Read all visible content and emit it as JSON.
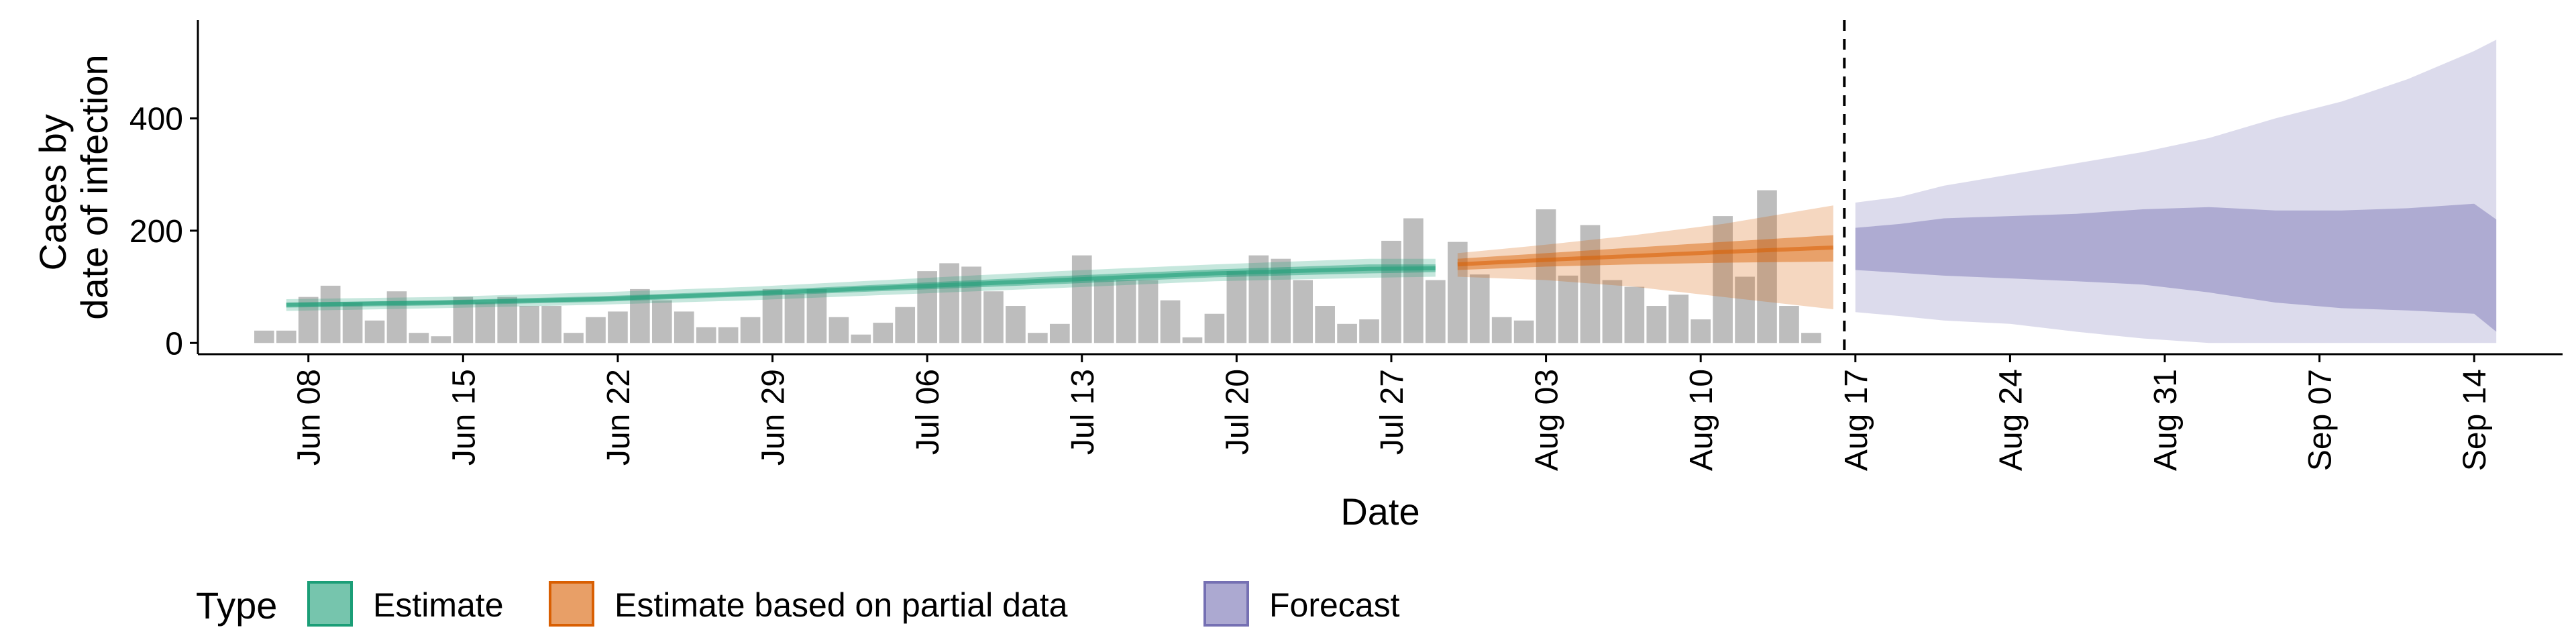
{
  "chart_data": {
    "type": "bar",
    "xlabel": "Date",
    "ylabel_lines": [
      "Cases by",
      "date of infection"
    ],
    "ylim": [
      -20,
      575
    ],
    "yticks": [
      0,
      200,
      400
    ],
    "x_range": [
      "2020-06-03",
      "2020-09-18"
    ],
    "x_ticks": [
      {
        "date": "2020-06-08",
        "label": "Jun 08"
      },
      {
        "date": "2020-06-15",
        "label": "Jun 15"
      },
      {
        "date": "2020-06-22",
        "label": "Jun 22"
      },
      {
        "date": "2020-06-29",
        "label": "Jun 29"
      },
      {
        "date": "2020-07-06",
        "label": "Jul 06"
      },
      {
        "date": "2020-07-13",
        "label": "Jul 13"
      },
      {
        "date": "2020-07-20",
        "label": "Jul 20"
      },
      {
        "date": "2020-07-27",
        "label": "Jul 27"
      },
      {
        "date": "2020-08-03",
        "label": "Aug 03"
      },
      {
        "date": "2020-08-10",
        "label": "Aug 10"
      },
      {
        "date": "2020-08-17",
        "label": "Aug 17"
      },
      {
        "date": "2020-08-24",
        "label": "Aug 24"
      },
      {
        "date": "2020-08-31",
        "label": "Aug 31"
      },
      {
        "date": "2020-09-07",
        "label": "Sep 07"
      },
      {
        "date": "2020-09-14",
        "label": "Sep 14"
      }
    ],
    "bars": {
      "color": "#bdbdbd",
      "start_date": "2020-06-06",
      "values": [
        22,
        22,
        82,
        102,
        72,
        40,
        92,
        18,
        12,
        82,
        72,
        82,
        66,
        66,
        18,
        46,
        56,
        96,
        76,
        56,
        28,
        28,
        46,
        96,
        88,
        96,
        46,
        15,
        36,
        64,
        128,
        142,
        136,
        92,
        66,
        18,
        34,
        156,
        112,
        112,
        112,
        76,
        10,
        52,
        128,
        156,
        150,
        112,
        66,
        34,
        42,
        182,
        222,
        112,
        180,
        122,
        46,
        40,
        238,
        120,
        210,
        112,
        100,
        66,
        86,
        42,
        226,
        118,
        272,
        66,
        18
      ]
    },
    "estimate_date": "2020-08-16",
    "legend": {
      "title": "Type",
      "position": "bottom",
      "items": [
        {
          "label": "Estimate",
          "color": "#1b9e77"
        },
        {
          "label": "Estimate based on partial data",
          "color": "#d95f02"
        },
        {
          "label": "Forecast",
          "color": "#7570b3"
        }
      ]
    },
    "series": [
      {
        "name": "Estimate",
        "color": "#1b9e77",
        "dates": [
          "2020-06-07",
          "2020-06-14",
          "2020-06-21",
          "2020-06-28",
          "2020-07-05",
          "2020-07-12",
          "2020-07-19",
          "2020-07-26",
          "2020-07-29"
        ],
        "upper90": [
          78,
          82,
          90,
          100,
          114,
          128,
          140,
          150,
          150
        ],
        "upper50": [
          72,
          76,
          83,
          93,
          106,
          119,
          131,
          140,
          140
        ],
        "median": [
          68,
          72,
          78,
          88,
          100,
          112,
          124,
          132,
          133
        ],
        "lower50": [
          63,
          67,
          73,
          83,
          94,
          105,
          117,
          124,
          126
        ],
        "lower90": [
          57,
          62,
          68,
          76,
          87,
          98,
          110,
          116,
          118
        ]
      },
      {
        "name": "Estimate based on partial data",
        "color": "#d95f02",
        "dates": [
          "2020-07-30",
          "2020-08-03",
          "2020-08-07",
          "2020-08-11",
          "2020-08-16"
        ],
        "upper90": [
          160,
          175,
          192,
          212,
          245
        ],
        "upper50": [
          150,
          160,
          170,
          180,
          192
        ],
        "median": [
          140,
          148,
          155,
          162,
          170
        ],
        "lower50": [
          130,
          136,
          140,
          143,
          145
        ],
        "lower90": [
          118,
          112,
          100,
          82,
          60
        ]
      },
      {
        "name": "Forecast",
        "color": "#7570b3",
        "dates": [
          "2020-08-17",
          "2020-08-19",
          "2020-08-21",
          "2020-08-24",
          "2020-08-27",
          "2020-08-30",
          "2020-09-02",
          "2020-09-05",
          "2020-09-08",
          "2020-09-11",
          "2020-09-14",
          "2020-09-15"
        ],
        "upper90": [
          250,
          260,
          280,
          300,
          320,
          340,
          365,
          400,
          430,
          470,
          520,
          540
        ],
        "upper50": [
          205,
          212,
          222,
          226,
          230,
          238,
          242,
          236,
          236,
          240,
          248,
          220
        ],
        "lower50": [
          130,
          125,
          120,
          115,
          110,
          104,
          90,
          72,
          62,
          58,
          52,
          20
        ],
        "lower90": [
          55,
          48,
          40,
          34,
          20,
          8,
          0,
          0,
          0,
          0,
          0,
          0
        ]
      }
    ]
  }
}
